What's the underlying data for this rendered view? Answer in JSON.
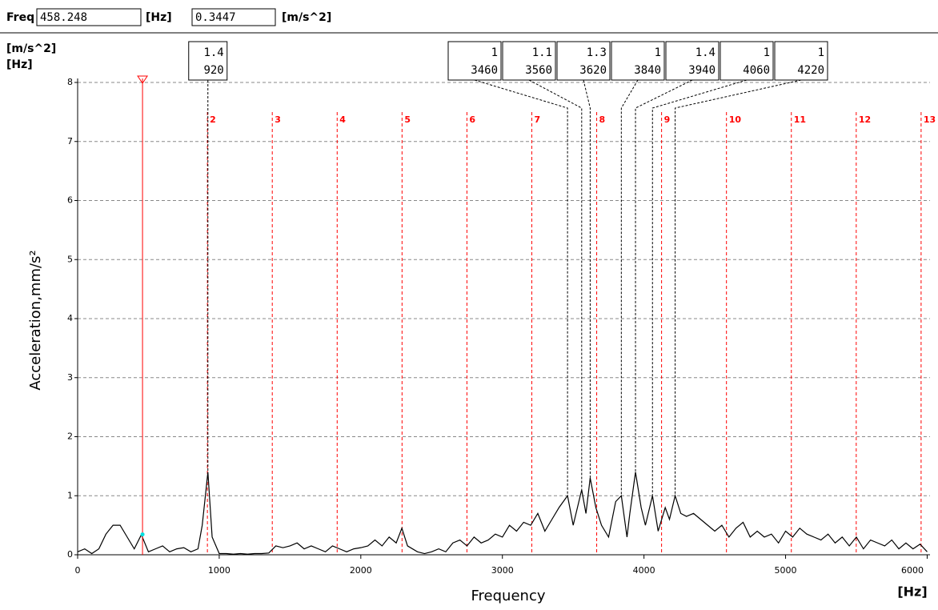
{
  "header": {
    "freq_label": "Freq",
    "freq": 458.248,
    "freq_unit": "[Hz]",
    "value": 0.3447,
    "value_unit": "[m/s^2]"
  },
  "chart_data": {
    "type": "line",
    "y_unit": "[m/s^2]",
    "x_unit": "[Hz]",
    "ylabel": "Acceleration,mm/s²",
    "xlabel": "Frequency",
    "x_unit_bottom": "[Hz]",
    "color": "#000000",
    "grid": true,
    "x": [
      0,
      50,
      100,
      150,
      200,
      250,
      300,
      350,
      400,
      450,
      500,
      550,
      600,
      650,
      700,
      750,
      800,
      850,
      880,
      920,
      950,
      1000,
      1050,
      1100,
      1150,
      1200,
      1250,
      1300,
      1350,
      1400,
      1450,
      1500,
      1550,
      1600,
      1650,
      1700,
      1750,
      1800,
      1850,
      1900,
      1950,
      2000,
      2050,
      2100,
      2150,
      2200,
      2250,
      2290,
      2330,
      2400,
      2450,
      2500,
      2550,
      2600,
      2650,
      2700,
      2750,
      2800,
      2850,
      2900,
      2950,
      3000,
      3050,
      3100,
      3150,
      3200,
      3250,
      3300,
      3350,
      3400,
      3460,
      3500,
      3560,
      3590,
      3620,
      3660,
      3700,
      3750,
      3800,
      3840,
      3880,
      3900,
      3940,
      3980,
      4010,
      4060,
      4100,
      4150,
      4180,
      4220,
      4260,
      4300,
      4350,
      4400,
      4450,
      4500,
      4550,
      4600,
      4650,
      4700,
      4750,
      4800,
      4850,
      4900,
      4950,
      5000,
      5050,
      5100,
      5150,
      5200,
      5250,
      5300,
      5350,
      5400,
      5450,
      5500,
      5550,
      5600,
      5650,
      5700,
      5750,
      5800,
      5850,
      5900,
      5950,
      6000
    ],
    "values": [
      0.05,
      0.1,
      0.02,
      0.1,
      0.35,
      0.5,
      0.5,
      0.3,
      0.1,
      0.34,
      0.05,
      0.1,
      0.15,
      0.05,
      0.1,
      0.12,
      0.05,
      0.1,
      0.5,
      1.4,
      0.3,
      0.02,
      0.02,
      0.01,
      0.02,
      0.01,
      0.02,
      0.02,
      0.03,
      0.15,
      0.12,
      0.15,
      0.2,
      0.1,
      0.15,
      0.1,
      0.05,
      0.15,
      0.1,
      0.05,
      0.1,
      0.12,
      0.15,
      0.25,
      0.15,
      0.3,
      0.2,
      0.45,
      0.15,
      0.05,
      0.02,
      0.05,
      0.1,
      0.05,
      0.2,
      0.25,
      0.15,
      0.3,
      0.2,
      0.25,
      0.35,
      0.3,
      0.5,
      0.4,
      0.55,
      0.5,
      0.7,
      0.4,
      0.6,
      0.8,
      1.0,
      0.5,
      1.1,
      0.7,
      1.3,
      0.8,
      0.5,
      0.3,
      0.9,
      1.0,
      0.3,
      0.7,
      1.4,
      0.8,
      0.5,
      1.0,
      0.4,
      0.8,
      0.6,
      1.0,
      0.7,
      0.65,
      0.7,
      0.6,
      0.5,
      0.4,
      0.5,
      0.3,
      0.45,
      0.55,
      0.3,
      0.4,
      0.3,
      0.35,
      0.2,
      0.4,
      0.3,
      0.45,
      0.35,
      0.3,
      0.25,
      0.35,
      0.2,
      0.3,
      0.15,
      0.3,
      0.1,
      0.25,
      0.2,
      0.15,
      0.25,
      0.1,
      0.2,
      0.1,
      0.18,
      0.05
    ],
    "xlim": [
      0,
      6020
    ],
    "ylim": [
      0,
      8
    ],
    "xticks": [
      0,
      1000,
      2000,
      3000,
      4000,
      5000,
      6000
    ],
    "yticks": [
      0,
      1,
      2,
      3,
      4,
      5,
      6,
      7,
      8
    ],
    "peaks": {
      "amplitude": [
        1.4,
        1,
        1.1,
        1.3,
        1,
        1.4,
        1,
        1
      ],
      "frequency": [
        920,
        3460,
        3560,
        3620,
        3840,
        3940,
        4060,
        4220
      ]
    },
    "harmonics": {
      "orders": [
        2,
        3,
        4,
        5,
        6,
        7,
        8,
        9,
        10,
        11,
        12,
        13
      ],
      "x": [
        916.5,
        1374.7,
        1833,
        2291.2,
        2749.5,
        3207.7,
        3666,
        4124.2,
        4582.5,
        5040.7,
        5499,
        5957.2
      ],
      "color": "#ff0000"
    },
    "cursor_color": "#ff0000"
  }
}
